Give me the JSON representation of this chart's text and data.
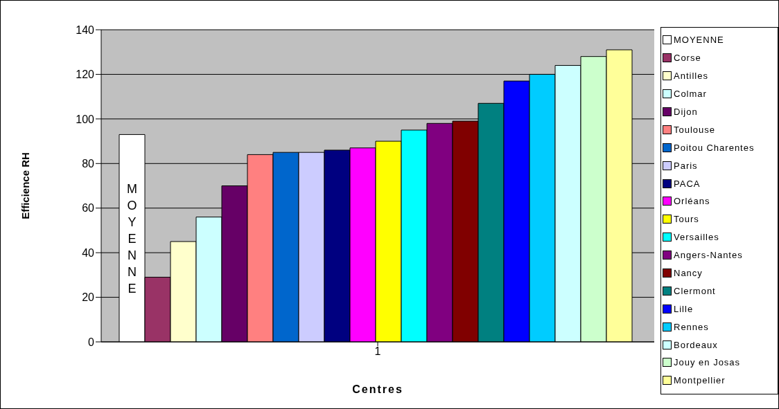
{
  "chart_data": {
    "type": "bar",
    "xlabel": "Centres",
    "ylabel": "Efficience RH",
    "categories": [
      "1"
    ],
    "series": [
      {
        "name": "MOYENNE",
        "color": "#ffffff",
        "values": [
          93
        ],
        "value_labels": [
          "MOYENNE"
        ]
      },
      {
        "name": "Corse",
        "color": "#993366",
        "values": [
          29
        ]
      },
      {
        "name": "Antilles",
        "color": "#ffffcc",
        "values": [
          45
        ]
      },
      {
        "name": "Colmar",
        "color": "#ccffff",
        "values": [
          56
        ]
      },
      {
        "name": "Dijon",
        "color": "#660066",
        "values": [
          70
        ]
      },
      {
        "name": "Toulouse",
        "color": "#ff8080",
        "values": [
          84
        ]
      },
      {
        "name": "Poitou Charentes",
        "color": "#0066cc",
        "values": [
          85
        ]
      },
      {
        "name": "Paris",
        "color": "#ccccff",
        "values": [
          85
        ]
      },
      {
        "name": "PACA",
        "color": "#000080",
        "values": [
          86
        ]
      },
      {
        "name": "Orléans",
        "color": "#ff00ff",
        "values": [
          87
        ]
      },
      {
        "name": "Tours",
        "color": "#ffff00",
        "values": [
          90
        ]
      },
      {
        "name": "Versailles",
        "color": "#00ffff",
        "values": [
          95
        ]
      },
      {
        "name": "Angers-Nantes",
        "color": "#800080",
        "values": [
          98
        ]
      },
      {
        "name": "Nancy",
        "color": "#800000",
        "values": [
          99
        ]
      },
      {
        "name": "Clermont",
        "color": "#008080",
        "values": [
          107
        ]
      },
      {
        "name": "Lille",
        "color": "#0000ff",
        "values": [
          117
        ]
      },
      {
        "name": "Rennes",
        "color": "#00ccff",
        "values": [
          120
        ]
      },
      {
        "name": "Bordeaux",
        "color": "#ccffff",
        "values": [
          124
        ]
      },
      {
        "name": "Jouy en Josas",
        "color": "#ccffcc",
        "values": [
          128
        ]
      },
      {
        "name": "Montpellier",
        "color": "#ffff99",
        "values": [
          131
        ]
      }
    ],
    "ylim": [
      0,
      140
    ],
    "yticks": [
      0,
      20,
      40,
      60,
      80,
      100,
      120,
      140
    ],
    "grid": "y",
    "legend": "right"
  }
}
